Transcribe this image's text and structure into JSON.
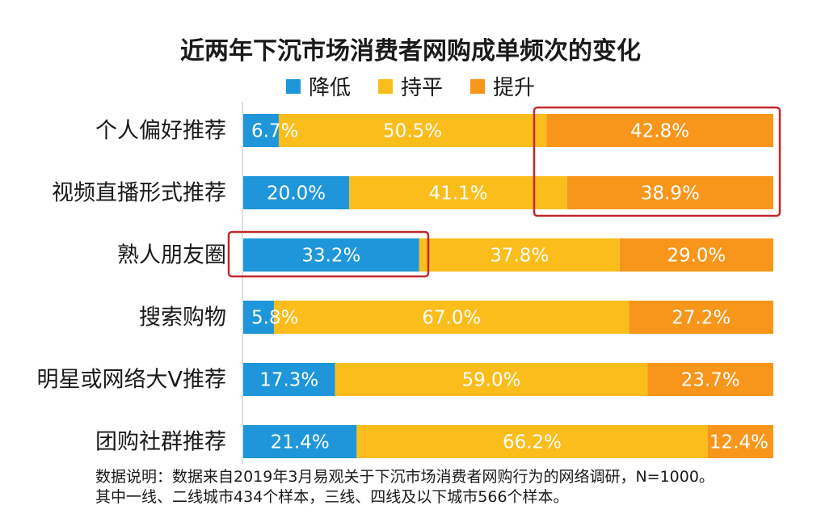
{
  "chart_data": {
    "type": "bar",
    "orientation": "horizontal",
    "stacked": true,
    "title": "近两年下沉市场消费者网购成单频次的变化",
    "categories": [
      "个人偏好推荐",
      "视频直播形式推荐",
      "熟人朋友圈",
      "搜索购物",
      "明星或网络大V推荐",
      "团购社群推荐"
    ],
    "series": [
      {
        "name": "降低",
        "color": "#1f96d9",
        "values": [
          6.7,
          20.0,
          33.2,
          5.8,
          17.3,
          21.4
        ],
        "labels": [
          "6.7%",
          "20.0%",
          "33.2%",
          "5.8%",
          "17.3%",
          "21.4%"
        ]
      },
      {
        "name": "持平",
        "color": "#fbbd1b",
        "values": [
          50.5,
          41.1,
          37.8,
          67.0,
          59.0,
          66.2
        ],
        "labels": [
          "50.5%",
          "41.1%",
          "37.8%",
          "67.0%",
          "59.0%",
          "66.2%"
        ]
      },
      {
        "name": "提升",
        "color": "#f7961b",
        "values": [
          42.8,
          38.9,
          29.0,
          27.2,
          23.7,
          12.4
        ],
        "labels": [
          "42.8%",
          "38.9%",
          "29.0%",
          "27.2%",
          "23.7%",
          "12.4%"
        ]
      }
    ],
    "xlim": [
      0,
      100
    ],
    "grid": false,
    "legend_position": "top"
  },
  "highlight_color": "#c0282d",
  "footnote": {
    "line1": "数据说明：数据来自2019年3月易观关于下沉市场消费者网购行为的网络调研，N=1000。",
    "line2": "其中一线、二线城市434个样本，三线、四线及以下城市566个样本。"
  }
}
